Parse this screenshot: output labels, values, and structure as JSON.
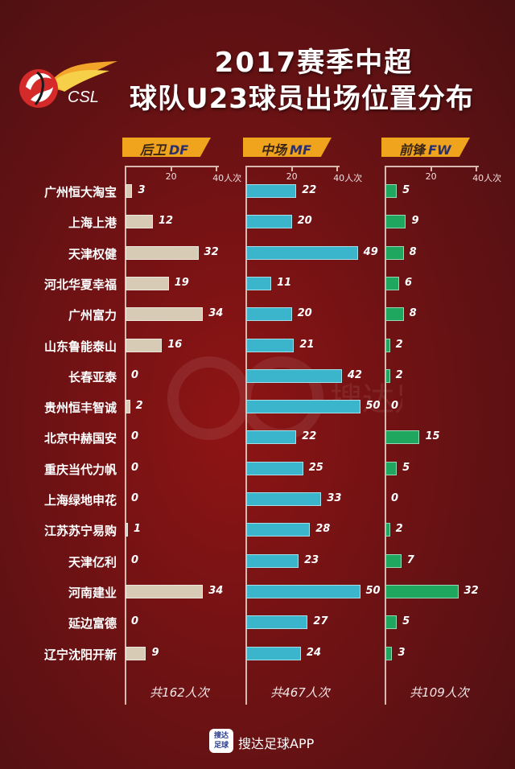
{
  "header": {
    "title_line1": "2017赛季中超",
    "title_line2": "球队U23球员出场位置分布",
    "logo_text": "CSL"
  },
  "columns": [
    {
      "key": "df",
      "label_cn": "后卫",
      "label_en": "DF",
      "total": "共162人次",
      "color": "#d8cbb5"
    },
    {
      "key": "mf",
      "label_cn": "中场",
      "label_en": "MF",
      "total": "共467人次",
      "color": "#3ab5cc"
    },
    {
      "key": "fw",
      "label_cn": "前锋",
      "label_en": "FW",
      "total": "共109人次",
      "color": "#1fa65f"
    }
  ],
  "axis": {
    "tick1": "20",
    "tick2": "40人次"
  },
  "footer": {
    "icon_text_top": "搜达",
    "icon_text_bottom": "足球",
    "app_name": "搜达足球APP"
  },
  "chart_data": {
    "type": "bar",
    "orientation": "horizontal",
    "title": "2017赛季中超 球队U23球员出场位置分布",
    "categories": [
      "广州恒大淘宝",
      "上海上港",
      "天津权健",
      "河北华夏幸福",
      "广州富力",
      "山东鲁能泰山",
      "长春亚泰",
      "贵州恒丰智诚",
      "北京中赫国安",
      "重庆当代力帆",
      "上海绿地申花",
      "江苏苏宁易购",
      "天津亿利",
      "河南建业",
      "延边富德",
      "辽宁沈阳开新"
    ],
    "series": [
      {
        "name": "后卫 DF",
        "values": [
          3,
          12,
          32,
          19,
          34,
          16,
          0,
          2,
          0,
          0,
          0,
          1,
          0,
          34,
          0,
          9
        ],
        "total_label": "共162人次"
      },
      {
        "name": "中场 MF",
        "values": [
          22,
          20,
          49,
          11,
          20,
          21,
          42,
          50,
          22,
          25,
          33,
          28,
          23,
          50,
          27,
          24
        ],
        "total_label": "共467人次"
      },
      {
        "name": "前锋 FW",
        "values": [
          5,
          9,
          8,
          6,
          8,
          2,
          2,
          0,
          15,
          5,
          0,
          2,
          7,
          32,
          5,
          3
        ],
        "total_label": "共109人次"
      }
    ],
    "xlabel": "人次",
    "xticks": [
      20,
      40
    ],
    "xlim": [
      0,
      40
    ],
    "legend": "column headers above each panel",
    "grid": false
  }
}
